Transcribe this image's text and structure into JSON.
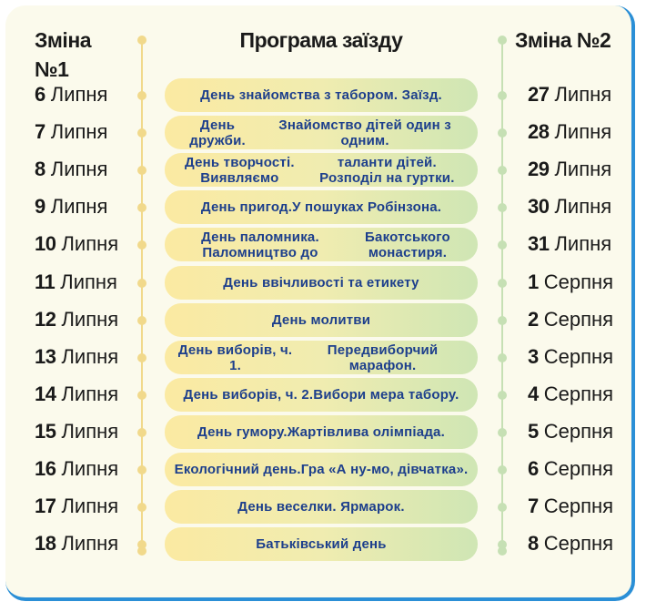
{
  "headers": {
    "shift1": "Зміна №1",
    "program": "Програма заїзду",
    "shift2": "Зміна №2"
  },
  "rows": [
    {
      "d1": "6",
      "m1": "Липня",
      "lines": [
        "День знайомства з табором. Заїзд."
      ],
      "d2": "27",
      "m2": "Липня"
    },
    {
      "d1": "7",
      "m1": "Липня",
      "lines": [
        "День дружби.",
        "Знайомство дітей один з одним."
      ],
      "d2": "28",
      "m2": "Липня"
    },
    {
      "d1": "8",
      "m1": "Липня",
      "lines": [
        "День творчості. Виявляємо",
        "таланти дітей. Розподіл на гуртки."
      ],
      "d2": "29",
      "m2": "Липня"
    },
    {
      "d1": "9",
      "m1": "Липня",
      "lines": [
        "День пригод.",
        "У пошуках Робінзона."
      ],
      "d2": "30",
      "m2": "Липня"
    },
    {
      "d1": "10",
      "m1": "Липня",
      "lines": [
        "День паломника. Паломництво до",
        "Бакотського монастиря."
      ],
      "d2": "31",
      "m2": "Липня"
    },
    {
      "d1": "11",
      "m1": "Липня",
      "lines": [
        "День ввічливості та етикету"
      ],
      "d2": "1",
      "m2": "Серпня"
    },
    {
      "d1": "12",
      "m1": "Липня",
      "lines": [
        "День молитви"
      ],
      "d2": "2",
      "m2": "Серпня"
    },
    {
      "d1": "13",
      "m1": "Липня",
      "lines": [
        "День виборів, ч. 1.",
        "Передвиборчий марафон."
      ],
      "d2": "3",
      "m2": "Серпня"
    },
    {
      "d1": "14",
      "m1": "Липня",
      "lines": [
        "День виборів, ч. 2.",
        "Вибори мера табору."
      ],
      "d2": "4",
      "m2": "Серпня"
    },
    {
      "d1": "15",
      "m1": "Липня",
      "lines": [
        "День гумору.",
        "Жартівлива олімпіада."
      ],
      "d2": "5",
      "m2": "Серпня"
    },
    {
      "d1": "16",
      "m1": "Липня",
      "lines": [
        "Екологічний день.",
        "Гра «А ну-мо, дівчатка»."
      ],
      "d2": "6",
      "m2": "Серпня"
    },
    {
      "d1": "17",
      "m1": "Липня",
      "lines": [
        "День веселки. Ярмарок."
      ],
      "d2": "7",
      "m2": "Серпня"
    },
    {
      "d1": "18",
      "m1": "Липня",
      "lines": [
        "Батьківський день"
      ],
      "d2": "8",
      "m2": "Серпня"
    }
  ]
}
